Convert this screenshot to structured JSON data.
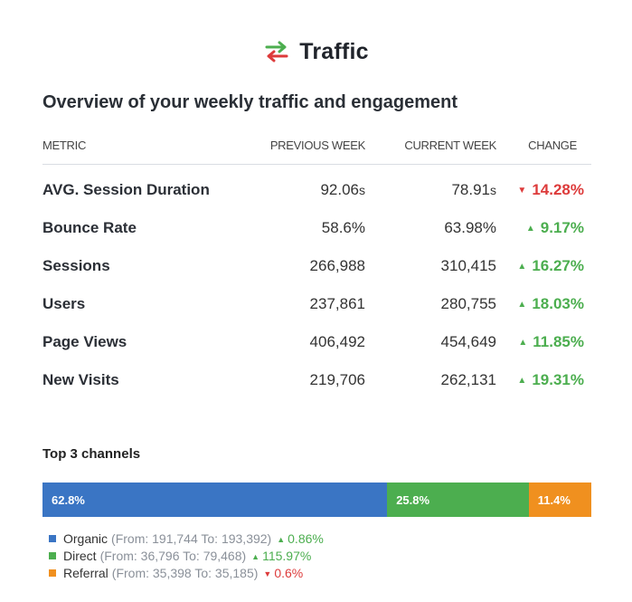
{
  "header": {
    "title": "Traffic",
    "icon": "swap-arrows-icon",
    "icon_colors": {
      "top": "#4cae4f",
      "bottom": "#dd3b3b"
    }
  },
  "subtitle": "Overview of your weekly traffic and engagement",
  "table": {
    "columns": [
      "METRIC",
      "PREVIOUS WEEK",
      "CURRENT WEEK",
      "CHANGE"
    ],
    "rows": [
      {
        "metric": "AVG. Session Duration",
        "previous": "92.06",
        "previous_unit": "s",
        "current": "78.91",
        "current_unit": "s",
        "change": "14.28%",
        "direction": "down"
      },
      {
        "metric": "Bounce Rate",
        "previous": "58.6%",
        "previous_unit": "",
        "current": "63.98%",
        "current_unit": "",
        "change": "9.17%",
        "direction": "up"
      },
      {
        "metric": "Sessions",
        "previous": "266,988",
        "previous_unit": "",
        "current": "310,415",
        "current_unit": "",
        "change": "16.27%",
        "direction": "up"
      },
      {
        "metric": "Users",
        "previous": "237,861",
        "previous_unit": "",
        "current": "280,755",
        "current_unit": "",
        "change": "18.03%",
        "direction": "up"
      },
      {
        "metric": "Page Views",
        "previous": "406,492",
        "previous_unit": "",
        "current": "454,649",
        "current_unit": "",
        "change": "11.85%",
        "direction": "up"
      },
      {
        "metric": "New Visits",
        "previous": "219,706",
        "previous_unit": "",
        "current": "262,131",
        "current_unit": "",
        "change": "19.31%",
        "direction": "up"
      }
    ]
  },
  "channels": {
    "title": "Top 3 channels",
    "items": [
      {
        "name": "Organic",
        "share": 62.8,
        "share_label": "62.8%",
        "detail": "(From: 191,744 To: 193,392)",
        "change": "0.86%",
        "direction": "up",
        "color": "#3a75c4"
      },
      {
        "name": "Direct",
        "share": 25.8,
        "share_label": "25.8%",
        "detail": "(From: 36,796 To: 79,468)",
        "change": "115.97%",
        "direction": "up",
        "color": "#4cae4f"
      },
      {
        "name": "Referral",
        "share": 11.4,
        "share_label": "11.4%",
        "detail": "(From: 35,398 To: 35,185)",
        "change": "0.6%",
        "direction": "down",
        "color": "#f0901f"
      }
    ]
  },
  "colors": {
    "up": "#4cae4f",
    "down": "#dd3b3b",
    "text": "#2b2f36"
  }
}
